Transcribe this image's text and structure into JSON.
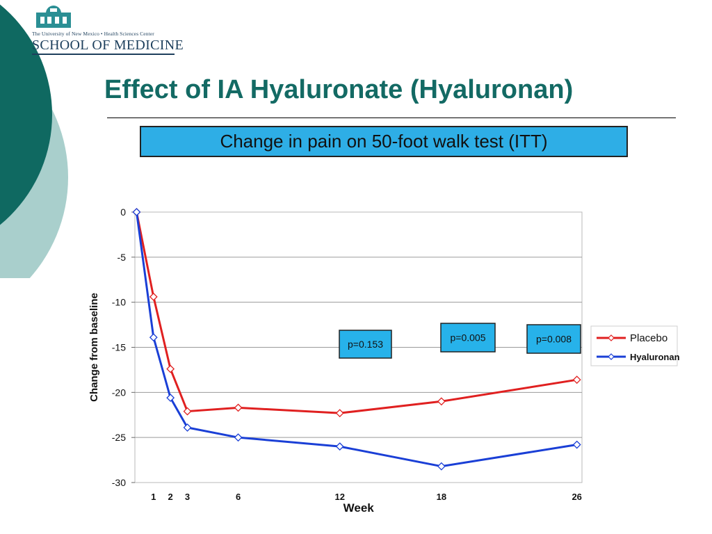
{
  "logo": {
    "small_line": "The University of New Mexico • Health Sciences Center",
    "big_line": "SCHOOL OF MEDICINE"
  },
  "slide": {
    "title": "Effect of IA Hyaluronate (Hyaluronan)",
    "subtitle": "Change in pain on 50-foot walk test (ITT)"
  },
  "colors": {
    "title": "#136a64",
    "subtitle_bg": "#2eaee6",
    "placebo": "#e02020",
    "hyaluronan": "#1a3fd6",
    "p_box": "#27b2ea",
    "deco_dark": "#0f6961",
    "deco_light": "#a9cfcc"
  },
  "chart_data": {
    "type": "line",
    "xlabel": "Week",
    "ylabel": "Change from baseline",
    "x_ticks": [
      1,
      2,
      3,
      6,
      12,
      18,
      26
    ],
    "y_ticks": [
      0,
      -5,
      -10,
      -15,
      -20,
      -25,
      -30
    ],
    "xlim": [
      -0.1,
      26.3
    ],
    "ylim": [
      -30,
      0
    ],
    "grid": "horizontal",
    "legend_position": "right",
    "series": [
      {
        "name": "Placebo",
        "color": "#e02020",
        "x": [
          0,
          1,
          2,
          3,
          6,
          12,
          18,
          26
        ],
        "y": [
          0,
          -9.4,
          -17.4,
          -22.1,
          -21.7,
          -22.3,
          -21.0,
          -18.6
        ]
      },
      {
        "name": "Hyaluronan",
        "color": "#1a3fd6",
        "x": [
          0,
          1,
          2,
          3,
          6,
          12,
          18,
          26
        ],
        "y": [
          0,
          -13.9,
          -20.6,
          -23.9,
          -25.0,
          -26.0,
          -28.2,
          -25.8
        ]
      }
    ],
    "annotations": [
      {
        "text": "p=0.153",
        "week": 12
      },
      {
        "text": "p=0.005",
        "week": 18
      },
      {
        "text": "p=0.008",
        "week": 26
      }
    ]
  }
}
